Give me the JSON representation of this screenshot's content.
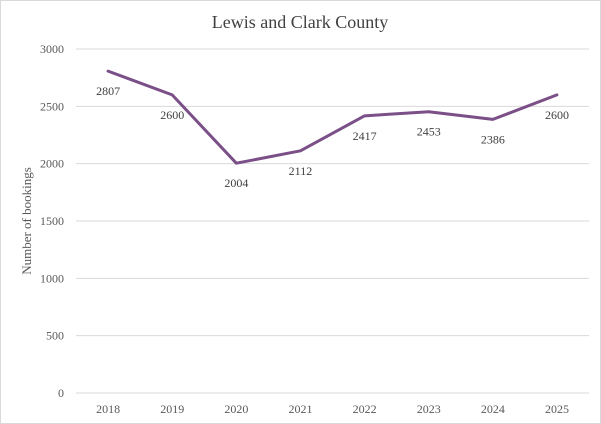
{
  "chart_data": {
    "type": "line",
    "title": "Lewis and Clark County",
    "xlabel": "",
    "ylabel": "Number of bookings",
    "categories": [
      "2018",
      "2019",
      "2020",
      "2021",
      "2022",
      "2023",
      "2024",
      "2025"
    ],
    "series": [
      {
        "values": [
          2807,
          2600,
          2004,
          2112,
          2417,
          2453,
          2386,
          2600
        ]
      }
    ],
    "data_labels": [
      "2807",
      "2600",
      "2004",
      "2112",
      "2417",
      "2453",
      "2386",
      "2600"
    ],
    "ylim": [
      0,
      3000
    ],
    "yticks": [
      "0",
      "500",
      "1000",
      "1500",
      "2000",
      "2500",
      "3000"
    ],
    "grid": true,
    "legend": "none",
    "line_color": "#7b4f87"
  }
}
